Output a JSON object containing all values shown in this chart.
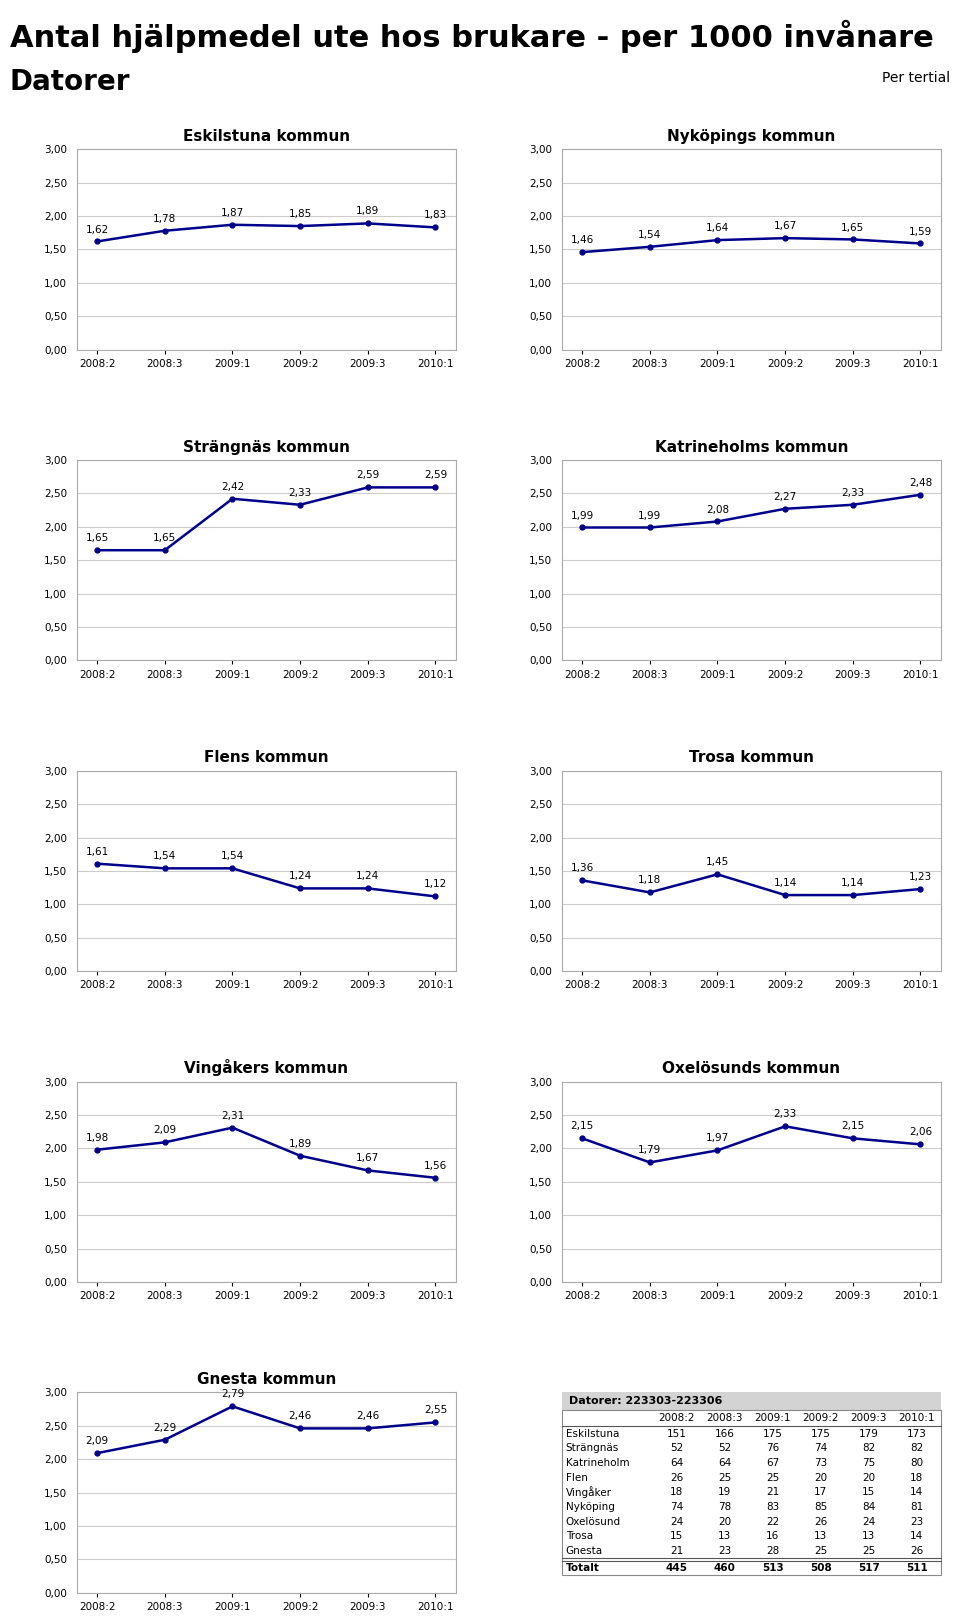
{
  "main_title": "Antal hjälpmedel ute hos brukare - per 1000 invånare",
  "subtitle": "Datorer",
  "per_tertial": "Per tertial",
  "x_labels": [
    "2008:2",
    "2008:3",
    "2009:1",
    "2009:2",
    "2009:3",
    "2010:1"
  ],
  "y_ticks": [
    0.0,
    0.5,
    1.0,
    1.5,
    2.0,
    2.5,
    3.0
  ],
  "y_lim": [
    0.0,
    3.0
  ],
  "charts": [
    {
      "title": "Eskilstuna kommun",
      "values": [
        1.62,
        1.78,
        1.87,
        1.85,
        1.89,
        1.83
      ]
    },
    {
      "title": "Nyköpings kommun",
      "values": [
        1.46,
        1.54,
        1.64,
        1.67,
        1.65,
        1.59
      ]
    },
    {
      "title": "Strängnäs kommun",
      "values": [
        1.65,
        1.65,
        2.42,
        2.33,
        2.59,
        2.59
      ]
    },
    {
      "title": "Katrineholms kommun",
      "values": [
        1.99,
        1.99,
        2.08,
        2.27,
        2.33,
        2.48
      ]
    },
    {
      "title": "Flens kommun",
      "values": [
        1.61,
        1.54,
        1.54,
        1.24,
        1.24,
        1.12
      ]
    },
    {
      "title": "Trosa kommun",
      "values": [
        1.36,
        1.18,
        1.45,
        1.14,
        1.14,
        1.23
      ]
    },
    {
      "title": "Vingåkers kommun",
      "values": [
        1.98,
        2.09,
        2.31,
        1.89,
        1.67,
        1.56
      ]
    },
    {
      "title": "Oxelösunds kommun",
      "values": [
        2.15,
        1.79,
        1.97,
        2.33,
        2.15,
        2.06
      ]
    },
    {
      "title": "Gnesta kommun",
      "values": [
        2.09,
        2.29,
        2.79,
        2.46,
        2.46,
        2.55
      ]
    }
  ],
  "line_color": "#00008B",
  "line_width": 1.8,
  "marker": "o",
  "marker_size": 3.5,
  "table_title": "Datorer: 223303-223306",
  "table_col_headers": [
    "2008:2",
    "2008:3",
    "2009:1",
    "2009:2",
    "2009:3",
    "2010:1"
  ],
  "table_rows": [
    {
      "label": "Eskilstuna",
      "values": [
        151,
        166,
        175,
        175,
        179,
        173
      ]
    },
    {
      "label": "Strängnäs",
      "values": [
        52,
        52,
        76,
        74,
        82,
        82
      ]
    },
    {
      "label": "Katrineholm",
      "values": [
        64,
        64,
        67,
        73,
        75,
        80
      ]
    },
    {
      "label": "Flen",
      "values": [
        26,
        25,
        25,
        20,
        20,
        18
      ]
    },
    {
      "label": "Vingåker",
      "values": [
        18,
        19,
        21,
        17,
        15,
        14
      ]
    },
    {
      "label": "Nyköping",
      "values": [
        74,
        78,
        83,
        85,
        84,
        81
      ]
    },
    {
      "label": "Oxelösund",
      "values": [
        24,
        20,
        22,
        26,
        24,
        23
      ]
    },
    {
      "label": "Trosa",
      "values": [
        15,
        13,
        16,
        13,
        13,
        14
      ]
    },
    {
      "label": "Gnesta",
      "values": [
        21,
        23,
        28,
        25,
        25,
        26
      ]
    }
  ],
  "table_total": {
    "label": "Totalt",
    "values": [
      445,
      460,
      513,
      508,
      517,
      511
    ]
  },
  "bg_color": "#ffffff",
  "plot_bg_color": "#ffffff",
  "grid_color": "#cccccc",
  "annotation_fontsize": 7.5,
  "title_fontsize": 11,
  "tick_fontsize": 7.5,
  "table_bg": "#d3d3d3"
}
